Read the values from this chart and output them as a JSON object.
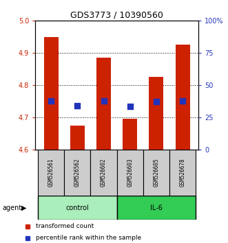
{
  "title": "GDS3773 / 10390560",
  "samples": [
    "GSM526561",
    "GSM526562",
    "GSM526602",
    "GSM526603",
    "GSM526605",
    "GSM526678"
  ],
  "bar_values": [
    4.95,
    4.675,
    4.885,
    4.695,
    4.825,
    4.925
  ],
  "bar_base": 4.6,
  "percentile_values": [
    37.5,
    34.0,
    37.5,
    33.5,
    37.0,
    37.5
  ],
  "ylim_left": [
    4.6,
    5.0
  ],
  "ylim_right": [
    0,
    100
  ],
  "yticks_left": [
    4.6,
    4.7,
    4.8,
    4.9,
    5.0
  ],
  "yticks_right": [
    0,
    25,
    50,
    75,
    100
  ],
  "ytick_labels_right": [
    "0",
    "25",
    "50",
    "75",
    "100%"
  ],
  "bar_color": "#cc2200",
  "dot_color": "#2233bb",
  "group_colors_control": "#aaeebb",
  "group_colors_il6": "#33cc55",
  "left_tick_color": "#cc2200",
  "right_tick_color": "#2233bb",
  "legend_bar_label": "transformed count",
  "legend_dot_label": "percentile rank within the sample",
  "sample_box_color": "#cccccc",
  "bar_width": 0.55,
  "dot_size": 30
}
